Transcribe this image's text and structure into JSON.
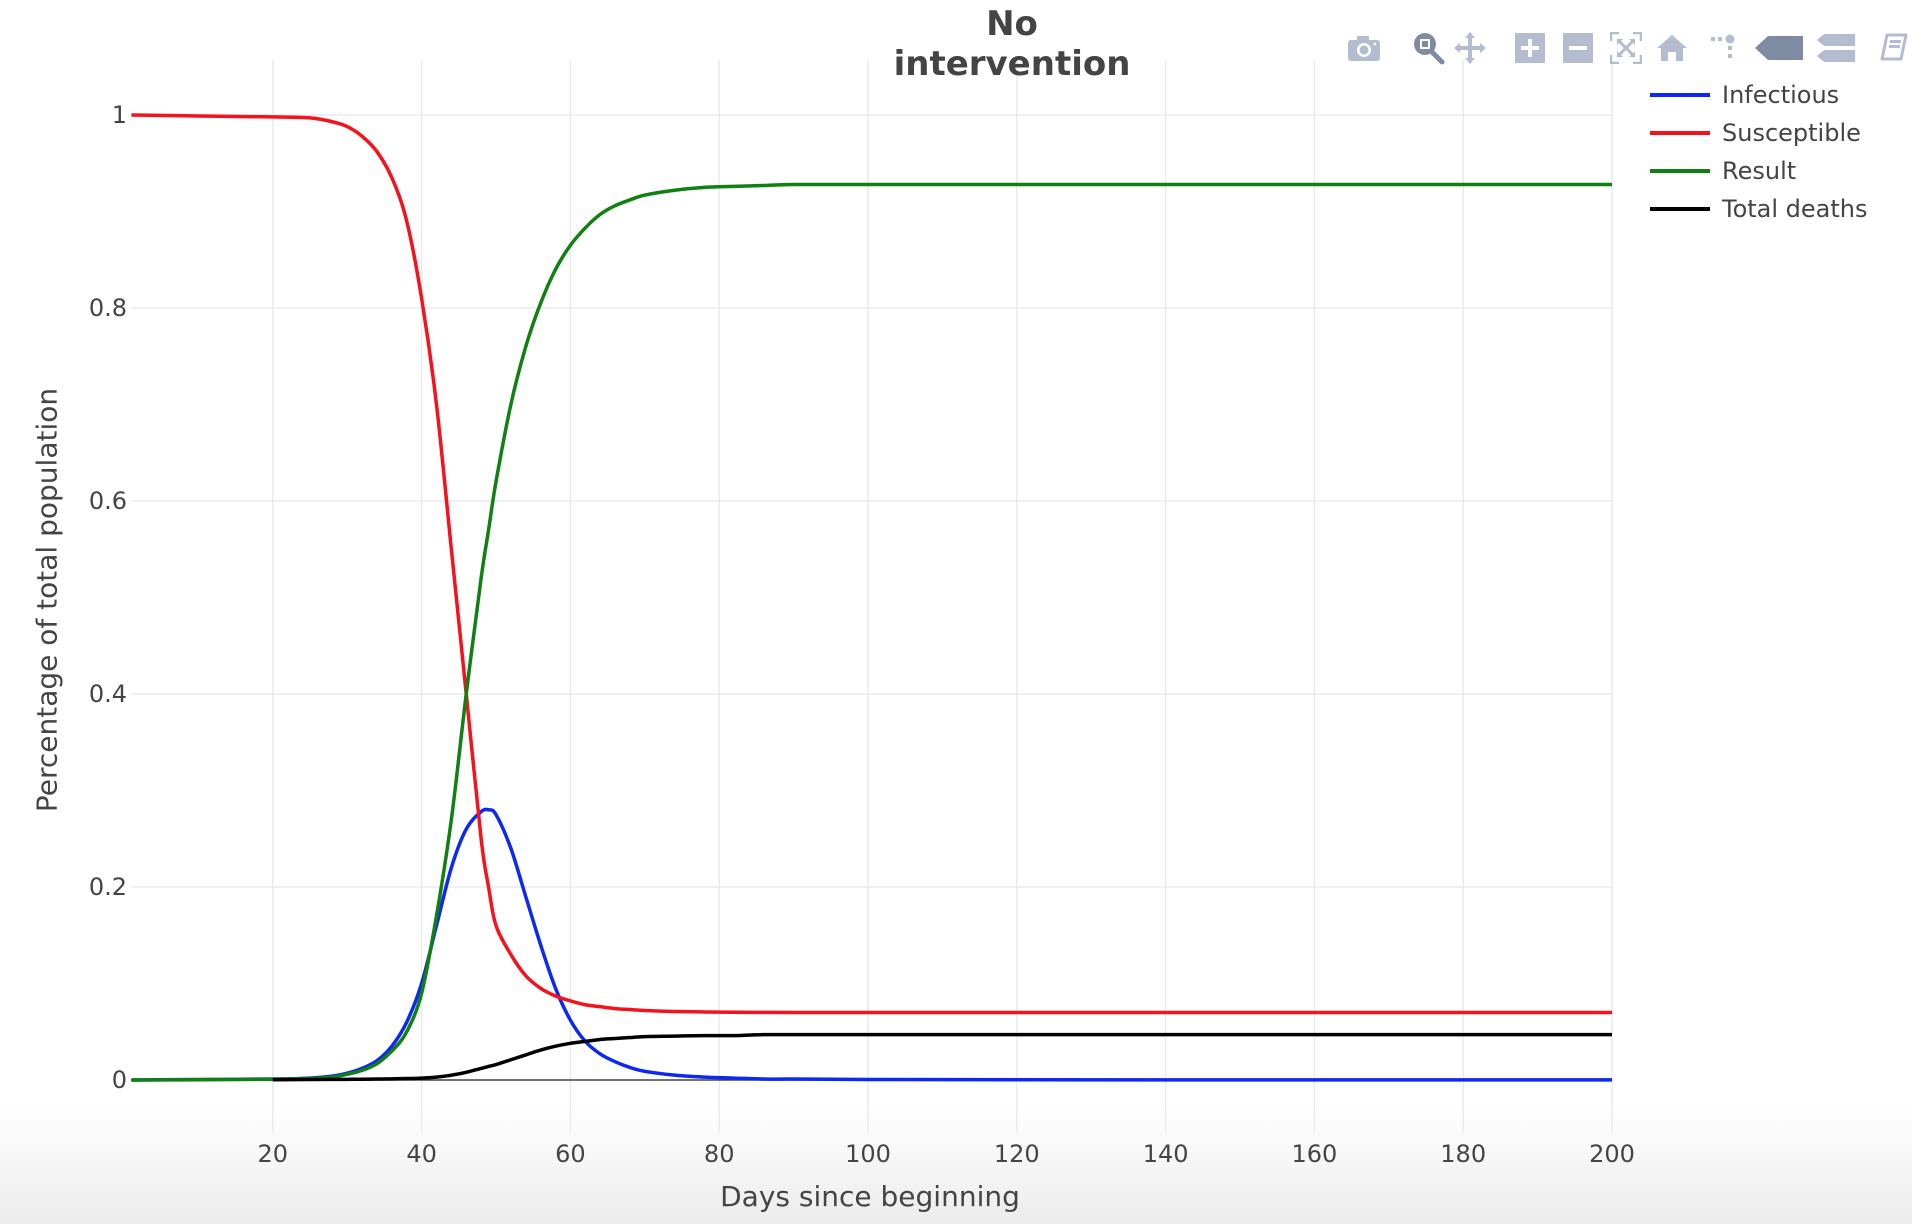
{
  "chart_data": {
    "type": "line",
    "title": "No intervention",
    "xlabel": "Days since beginning",
    "ylabel": "Percentage of total population",
    "xlim": [
      1,
      200
    ],
    "ylim": [
      0,
      1.05
    ],
    "x_ticks": [
      20,
      40,
      60,
      80,
      100,
      120,
      140,
      160,
      180,
      200
    ],
    "y_ticks": [
      0,
      0.2,
      0.4,
      0.6,
      0.8,
      1
    ],
    "y_tick_labels": [
      "0",
      "0.2",
      "0.4",
      "0.6",
      "0.8",
      "1"
    ],
    "grid": true,
    "legend_position": "top-right-outside",
    "x": [
      1,
      10,
      20,
      25,
      28,
      30,
      32,
      34,
      36,
      38,
      40,
      42,
      44,
      46,
      48,
      49,
      50,
      52,
      54,
      56,
      58,
      60,
      62,
      64,
      66,
      68,
      70,
      74,
      78,
      82,
      86,
      90,
      100,
      120,
      150,
      200
    ],
    "series": [
      {
        "name": "Infectious",
        "color": "#0d28f5",
        "values": [
          0,
          0.0005,
          0.001,
          0.002,
          0.004,
          0.007,
          0.012,
          0.02,
          0.035,
          0.06,
          0.1,
          0.16,
          0.22,
          0.26,
          0.278,
          0.28,
          0.275,
          0.24,
          0.19,
          0.14,
          0.095,
          0.062,
          0.04,
          0.027,
          0.019,
          0.013,
          0.009,
          0.005,
          0.003,
          0.002,
          0.001,
          0.001,
          0.0005,
          0.0002,
          0.0001,
          0.0001
        ]
      },
      {
        "name": "Susceptible",
        "color": "#f5111d",
        "values": [
          1,
          0.999,
          0.998,
          0.997,
          0.993,
          0.988,
          0.978,
          0.962,
          0.935,
          0.89,
          0.81,
          0.7,
          0.55,
          0.4,
          0.25,
          0.2,
          0.16,
          0.13,
          0.108,
          0.095,
          0.087,
          0.082,
          0.078,
          0.076,
          0.074,
          0.073,
          0.072,
          0.071,
          0.0705,
          0.0702,
          0.0701,
          0.07,
          0.07,
          0.07,
          0.07,
          0.07
        ]
      },
      {
        "name": "Result",
        "color": "#108012",
        "values": [
          0,
          0.0003,
          0.0008,
          0.0015,
          0.003,
          0.006,
          0.01,
          0.017,
          0.03,
          0.05,
          0.09,
          0.17,
          0.27,
          0.4,
          0.52,
          0.57,
          0.62,
          0.7,
          0.76,
          0.805,
          0.84,
          0.865,
          0.883,
          0.897,
          0.906,
          0.912,
          0.917,
          0.922,
          0.925,
          0.926,
          0.927,
          0.928,
          0.928,
          0.928,
          0.928,
          0.928
        ]
      },
      {
        "name": "Total deaths",
        "color": "#000000",
        "values": [
          0,
          0,
          0.0003,
          0.0005,
          0.0006,
          0.0007,
          0.0008,
          0.001,
          0.0012,
          0.0015,
          0.002,
          0.003,
          0.005,
          0.008,
          0.012,
          0.014,
          0.016,
          0.021,
          0.026,
          0.031,
          0.035,
          0.038,
          0.04,
          0.042,
          0.043,
          0.044,
          0.045,
          0.0455,
          0.046,
          0.046,
          0.047,
          0.047,
          0.047,
          0.047,
          0.047,
          0.047
        ]
      }
    ]
  },
  "modebar": {
    "buttons": [
      {
        "name": "camera-icon",
        "tooltip": "Download plot as a png"
      },
      {
        "name": "zoom-icon",
        "tooltip": "Zoom"
      },
      {
        "name": "pan-icon",
        "tooltip": "Pan"
      },
      {
        "name": "zoom-in-icon",
        "tooltip": "Zoom in"
      },
      {
        "name": "zoom-out-icon",
        "tooltip": "Zoom out"
      },
      {
        "name": "autoscale-icon",
        "tooltip": "Autoscale"
      },
      {
        "name": "home-icon",
        "tooltip": "Reset axes"
      },
      {
        "name": "spike-lines-icon",
        "tooltip": "Toggle Spike Lines"
      },
      {
        "name": "hover-closest-icon",
        "tooltip": "Show closest data on hover"
      },
      {
        "name": "hover-compare-icon",
        "tooltip": "Compare data on hover"
      },
      {
        "name": "plotly-logo-icon",
        "tooltip": "Produced with Plotly"
      }
    ]
  },
  "colors": {
    "grid": "#ebebeb",
    "text": "#444444",
    "modebar_inactive": "#b3bdcf",
    "modebar_active": "#7f8aa3"
  }
}
